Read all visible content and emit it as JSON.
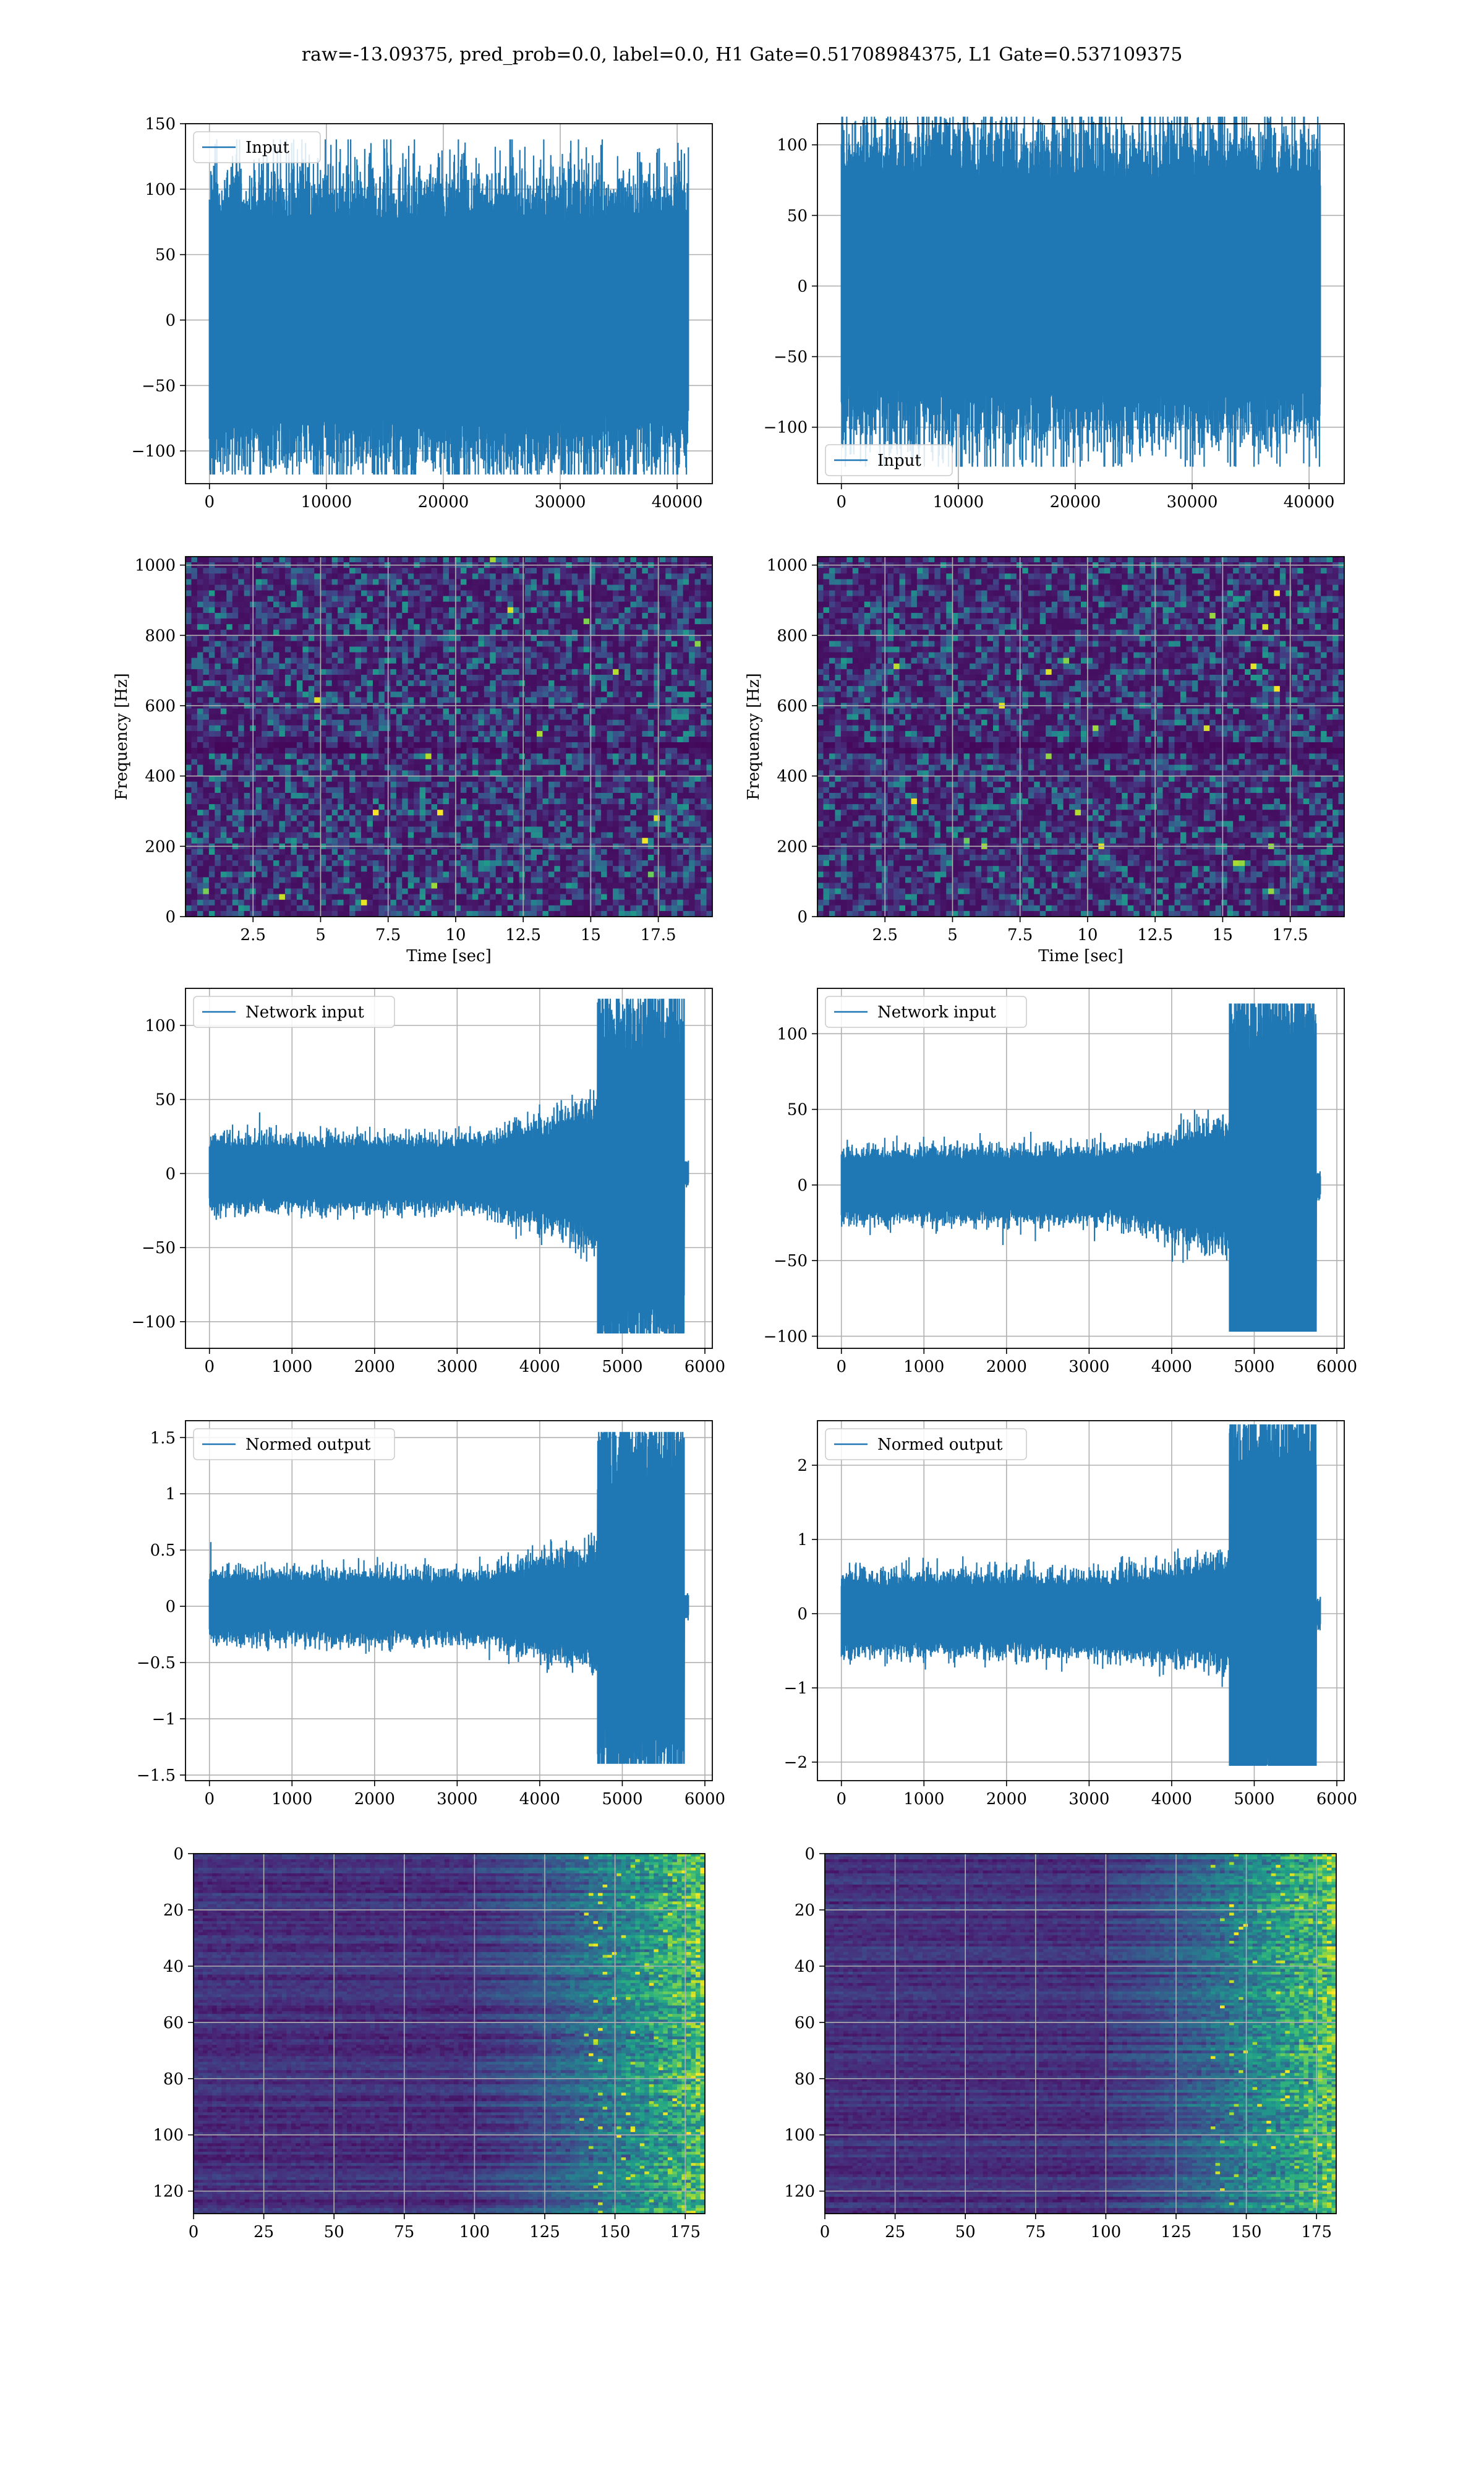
{
  "figure": {
    "title": "raw=-13.09375, pred_prob=0.0, label=0.0, H1 Gate=0.51708984375, L1 Gate=0.537109375"
  },
  "colors": {
    "line": "#1f77b4",
    "grid": "#b0b0b0"
  },
  "chart_data": [
    {
      "id": "input-h1",
      "type": "line",
      "title": "",
      "xlabel": "",
      "ylabel": "",
      "series": [
        {
          "name": "Input"
        }
      ],
      "legend": "top-left",
      "xlim": [
        -2048,
        43008
      ],
      "ylim": [
        -125,
        150
      ],
      "xticks": [
        0,
        10000,
        20000,
        30000,
        40000
      ],
      "yticks": [
        -100,
        -50,
        0,
        50,
        100,
        150
      ],
      "signal": {
        "n": 40960,
        "amplitude": 90,
        "peak_max": 138,
        "peak_min": -118
      },
      "grid": true
    },
    {
      "id": "input-l1",
      "type": "line",
      "title": "",
      "xlabel": "",
      "ylabel": "",
      "series": [
        {
          "name": "Input"
        }
      ],
      "legend": "bottom-left",
      "xlim": [
        -2048,
        43008
      ],
      "ylim": [
        -140,
        115
      ],
      "xticks": [
        0,
        10000,
        20000,
        30000,
        40000
      ],
      "yticks": [
        -100,
        -50,
        0,
        50,
        100
      ],
      "signal": {
        "n": 40960,
        "amplitude": 90,
        "peak_max": 120,
        "peak_min": -128
      },
      "grid": true
    },
    {
      "id": "spec-h1",
      "type": "heatmap",
      "title": "",
      "xlabel": "Time [sec]",
      "ylabel": "Frequency [Hz]",
      "xlim": [
        0,
        19.5
      ],
      "ylim": [
        0,
        1024
      ],
      "xticks": [
        2.5,
        5.0,
        7.5,
        10.0,
        12.5,
        15.0,
        17.5
      ],
      "yticks": [
        0,
        200,
        400,
        600,
        800,
        1000
      ],
      "colormap": "viridis",
      "grid": true
    },
    {
      "id": "spec-l1",
      "type": "heatmap",
      "title": "",
      "xlabel": "Time [sec]",
      "ylabel": "Frequency [Hz]",
      "xlim": [
        0,
        19.5
      ],
      "ylim": [
        0,
        1024
      ],
      "xticks": [
        2.5,
        5.0,
        7.5,
        10.0,
        12.5,
        15.0,
        17.5
      ],
      "yticks": [
        0,
        200,
        400,
        600,
        800,
        1000
      ],
      "colormap": "viridis",
      "grid": true
    },
    {
      "id": "net-h1",
      "type": "line",
      "title": "",
      "xlabel": "",
      "ylabel": "",
      "series": [
        {
          "name": "Network input"
        }
      ],
      "legend": "top-left",
      "xlim": [
        -290,
        6090
      ],
      "ylim": [
        -118,
        125
      ],
      "xticks": [
        0,
        1000,
        2000,
        3000,
        4000,
        5000,
        6000
      ],
      "yticks": [
        -100,
        -50,
        0,
        50,
        100
      ],
      "signal": {
        "n": 5800,
        "pre_amp": 20,
        "mid_amp": 40,
        "burst_amp": 85,
        "peak_max": 118,
        "peak_min": -108,
        "burst_start": 4700,
        "burst_end": 5750
      },
      "grid": true
    },
    {
      "id": "net-l1",
      "type": "line",
      "title": "",
      "xlabel": "",
      "ylabel": "",
      "series": [
        {
          "name": "Network input"
        }
      ],
      "legend": "top-left",
      "xlim": [
        -290,
        6090
      ],
      "ylim": [
        -108,
        130
      ],
      "xticks": [
        0,
        1000,
        2000,
        3000,
        4000,
        5000,
        6000
      ],
      "yticks": [
        -100,
        -50,
        0,
        50,
        100
      ],
      "signal": {
        "n": 5800,
        "pre_amp": 20,
        "mid_amp": 35,
        "burst_amp": 90,
        "peak_max": 120,
        "peak_min": -97,
        "burst_start": 4700,
        "burst_end": 5750
      },
      "grid": true
    },
    {
      "id": "norm-h1",
      "type": "line",
      "title": "",
      "xlabel": "",
      "ylabel": "",
      "series": [
        {
          "name": "Normed output"
        }
      ],
      "legend": "top-left",
      "xlim": [
        -290,
        6090
      ],
      "ylim": [
        -1.55,
        1.65
      ],
      "xticks": [
        0,
        1000,
        2000,
        3000,
        4000,
        5000,
        6000
      ],
      "yticks": [
        -1.5,
        -1.0,
        -0.5,
        0.0,
        0.5,
        1.0,
        1.5
      ],
      "signal": {
        "n": 5800,
        "pre_amp": 0.25,
        "mid_amp": 0.45,
        "burst_amp": 1.1,
        "peak_max": 1.55,
        "peak_min": -1.4,
        "burst_start": 4700,
        "burst_end": 5750
      },
      "grid": true
    },
    {
      "id": "norm-l1",
      "type": "line",
      "title": "",
      "xlabel": "",
      "ylabel": "",
      "series": [
        {
          "name": "Normed output"
        }
      ],
      "legend": "top-left",
      "xlim": [
        -290,
        6090
      ],
      "ylim": [
        -2.25,
        2.6
      ],
      "xticks": [
        0,
        1000,
        2000,
        3000,
        4000,
        5000,
        6000
      ],
      "yticks": [
        -2,
        -1,
        0,
        1,
        2
      ],
      "signal": {
        "n": 5800,
        "pre_amp": 0.45,
        "mid_amp": 0.6,
        "burst_amp": 1.9,
        "peak_max": 2.55,
        "peak_min": -2.05,
        "burst_start": 4700,
        "burst_end": 5750
      },
      "grid": true
    },
    {
      "id": "feat-h1",
      "type": "heatmap",
      "title": "",
      "xlabel": "",
      "ylabel": "",
      "xlim": [
        0,
        182
      ],
      "ylim": [
        128,
        0
      ],
      "xticks": [
        0,
        25,
        50,
        75,
        100,
        125,
        150,
        175
      ],
      "yticks": [
        0,
        20,
        40,
        60,
        80,
        100,
        120
      ],
      "colormap": "viridis",
      "grid": true
    },
    {
      "id": "feat-l1",
      "type": "heatmap",
      "title": "",
      "xlabel": "",
      "ylabel": "",
      "xlim": [
        0,
        182
      ],
      "ylim": [
        128,
        0
      ],
      "xticks": [
        0,
        25,
        50,
        75,
        100,
        125,
        150,
        175
      ],
      "yticks": [
        0,
        20,
        40,
        60,
        80,
        100,
        120
      ],
      "colormap": "viridis",
      "grid": true
    }
  ]
}
